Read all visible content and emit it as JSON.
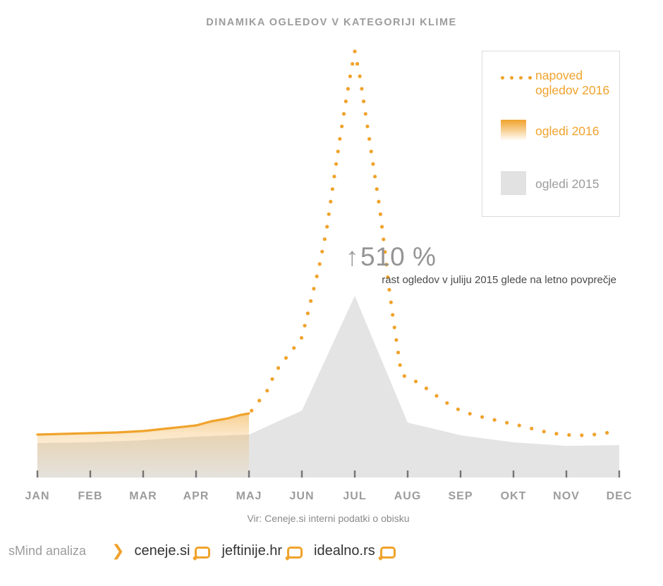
{
  "title": "DINAMIKA OGLEDOV V KATEGORIJI KLIME",
  "legend": {
    "items": [
      {
        "label": "napoved\nogledov 2016",
        "swatch": "dotted-line-swatch"
      },
      {
        "label": "ogledi 2016",
        "swatch": "orange-gradient-swatch"
      },
      {
        "label": "ogledi 2015",
        "swatch": "gray-area-swatch"
      }
    ]
  },
  "annotation": {
    "arrow": "↑",
    "value": "510 %",
    "caption": "rast ogledov v juliju 2015 glede na letno povprečje"
  },
  "source": "Vir: Ceneje.si interni podatki o obisku",
  "footer": {
    "brand": "sMind analiza",
    "chevron": "❯",
    "sites": [
      "ceneje.si",
      "jeftinije.hr",
      "idealno.rs"
    ]
  },
  "colors": {
    "orange": "#F0A32C",
    "gray_area": "#E4E4E4",
    "tick": "#555555",
    "text_gray": "#9C9C9C"
  },
  "chart_data": {
    "type": "area",
    "title": "DINAMIKA OGLEDOV V KATEGORIJI KLIME",
    "categories": [
      "JAN",
      "FEB",
      "MAR",
      "APR",
      "MAJ",
      "JUN",
      "JUL",
      "AUG",
      "SEP",
      "OKT",
      "NOV",
      "DEC"
    ],
    "unit": "relative view volume (indexed, chart px units)",
    "annotation_value_pct": 510,
    "legend_position": "top-right",
    "grid": false,
    "series": [
      {
        "name": "ogledi 2015",
        "type": "area",
        "color": "#E4E4E4",
        "values": [
          49,
          50,
          53,
          58,
          61,
          95,
          258,
          78,
          60,
          50,
          45,
          46
        ]
      },
      {
        "name": "ogledi 2016",
        "type": "area-gradient",
        "color": "#F0A32C",
        "values": [
          61,
          63,
          66,
          74,
          91,
          null,
          null,
          null,
          null,
          null,
          null,
          null
        ],
        "curve_detail": [
          [
            0,
            61
          ],
          [
            0.5,
            62
          ],
          [
            1,
            63
          ],
          [
            1.5,
            64
          ],
          [
            2,
            66
          ],
          [
            2.5,
            70
          ],
          [
            3,
            74
          ],
          [
            3.3,
            80
          ],
          [
            3.6,
            84
          ],
          [
            3.85,
            89
          ],
          [
            4,
            91
          ]
        ]
      },
      {
        "name": "napoved ogledov 2016",
        "type": "dotted-line",
        "color": "#F0A32C",
        "values": [
          null,
          null,
          null,
          null,
          107,
          199,
          605,
          141,
          95,
          76,
          60,
          66
        ],
        "curve_detail": [
          [
            4.02,
            92
          ],
          [
            4.17,
            107
          ],
          [
            4.33,
            121
          ],
          [
            4.5,
            150
          ],
          [
            4.67,
            167
          ],
          [
            4.83,
            182
          ],
          [
            5.0,
            199
          ],
          [
            5.16,
            248
          ],
          [
            5.32,
            297
          ],
          [
            5.47,
            353
          ],
          [
            5.59,
            416
          ],
          [
            5.72,
            482
          ],
          [
            5.84,
            538
          ],
          [
            5.92,
            573
          ],
          [
            6.0,
            605
          ],
          [
            6.1,
            568
          ],
          [
            6.19,
            523
          ],
          [
            6.28,
            478
          ],
          [
            6.37,
            433
          ],
          [
            6.47,
            383
          ],
          [
            6.56,
            328
          ],
          [
            6.65,
            268
          ],
          [
            6.73,
            223
          ],
          [
            6.81,
            183
          ],
          [
            6.88,
            147
          ],
          [
            7.0,
            141
          ],
          [
            7.2,
            135
          ],
          [
            7.4,
            124
          ],
          [
            7.6,
            113
          ],
          [
            7.8,
            103
          ],
          [
            8.0,
            95
          ],
          [
            8.28,
            88
          ],
          [
            8.53,
            84
          ],
          [
            8.79,
            79
          ],
          [
            9.0,
            76
          ],
          [
            9.27,
            71
          ],
          [
            9.52,
            66
          ],
          [
            9.83,
            62
          ],
          [
            10.12,
            60
          ],
          [
            10.4,
            60
          ],
          [
            10.63,
            62
          ],
          [
            10.81,
            64
          ],
          [
            11.0,
            66
          ]
        ]
      }
    ]
  }
}
